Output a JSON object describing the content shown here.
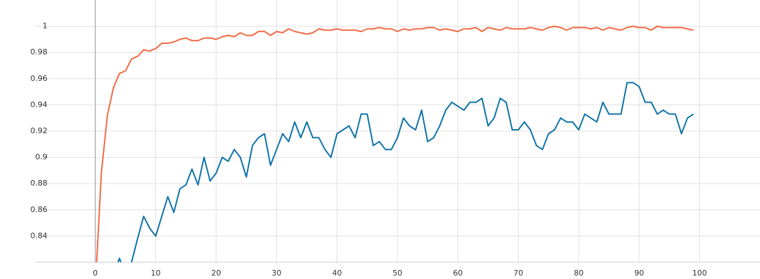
{
  "chart_data": {
    "type": "line",
    "x": [
      0,
      1,
      2,
      3,
      4,
      5,
      6,
      7,
      8,
      9,
      10,
      11,
      12,
      13,
      14,
      15,
      16,
      17,
      18,
      19,
      20,
      21,
      22,
      23,
      24,
      25,
      26,
      27,
      28,
      29,
      30,
      31,
      32,
      33,
      34,
      35,
      36,
      37,
      38,
      39,
      40,
      41,
      42,
      43,
      44,
      45,
      46,
      47,
      48,
      49,
      50,
      51,
      52,
      53,
      54,
      55,
      56,
      57,
      58,
      59,
      60,
      61,
      62,
      63,
      64,
      65,
      66,
      67,
      68,
      69,
      70,
      71,
      72,
      73,
      74,
      75,
      76,
      77,
      78,
      79,
      80,
      81,
      82,
      83,
      84,
      85,
      86,
      87,
      88,
      89,
      90,
      91,
      92,
      93,
      94,
      95,
      96,
      97,
      98,
      99
    ],
    "series": [
      {
        "color": "#f26b43",
        "values": [
          0.8,
          0.888,
          0.932,
          0.953,
          0.964,
          0.966,
          0.975,
          0.977,
          0.982,
          0.981,
          0.983,
          0.987,
          0.987,
          0.988,
          0.99,
          0.991,
          0.989,
          0.989,
          0.991,
          0.991,
          0.99,
          0.992,
          0.993,
          0.992,
          0.995,
          0.993,
          0.993,
          0.996,
          0.996,
          0.993,
          0.996,
          0.995,
          0.998,
          0.996,
          0.995,
          0.994,
          0.995,
          0.998,
          0.997,
          0.997,
          0.998,
          0.997,
          0.997,
          0.997,
          0.996,
          0.998,
          0.998,
          0.999,
          0.998,
          0.998,
          0.996,
          0.998,
          0.997,
          0.998,
          0.998,
          0.999,
          0.999,
          0.997,
          0.998,
          0.997,
          0.996,
          0.998,
          0.998,
          0.999,
          0.996,
          0.999,
          0.998,
          0.997,
          0.999,
          0.998,
          0.998,
          0.998,
          0.999,
          0.998,
          0.997,
          0.999,
          1.0,
          0.999,
          0.997,
          0.999,
          0.999,
          0.999,
          0.998,
          0.999,
          0.997,
          0.999,
          0.998,
          0.997,
          0.999,
          1.0,
          0.999,
          0.999,
          0.997,
          1.0,
          0.999,
          0.999,
          0.999,
          0.999,
          0.998,
          0.997
        ]
      },
      {
        "color": "#0f73a8",
        "values": [
          0.8,
          0.81,
          0.8,
          0.81,
          0.823,
          0.81,
          0.82,
          0.838,
          0.855,
          0.846,
          0.84,
          0.855,
          0.87,
          0.858,
          0.876,
          0.879,
          0.891,
          0.879,
          0.9,
          0.882,
          0.888,
          0.9,
          0.897,
          0.906,
          0.9,
          0.885,
          0.909,
          0.915,
          0.918,
          0.894,
          0.906,
          0.918,
          0.912,
          0.927,
          0.915,
          0.927,
          0.915,
          0.915,
          0.906,
          0.9,
          0.918,
          0.921,
          0.924,
          0.915,
          0.933,
          0.933,
          0.909,
          0.912,
          0.906,
          0.906,
          0.915,
          0.93,
          0.924,
          0.921,
          0.936,
          0.912,
          0.915,
          0.924,
          0.936,
          0.942,
          0.939,
          0.936,
          0.942,
          0.942,
          0.945,
          0.924,
          0.93,
          0.945,
          0.942,
          0.921,
          0.921,
          0.927,
          0.921,
          0.909,
          0.906,
          0.918,
          0.921,
          0.93,
          0.927,
          0.927,
          0.921,
          0.933,
          0.93,
          0.927,
          0.942,
          0.933,
          0.933,
          0.933,
          0.957,
          0.957,
          0.954,
          0.942,
          0.942,
          0.933,
          0.936,
          0.933,
          0.933,
          0.918,
          0.93,
          0.933
        ]
      }
    ],
    "xlim": [
      -10,
      110
    ],
    "xticks": [
      0,
      10,
      20,
      30,
      40,
      50,
      60,
      70,
      80,
      90,
      100
    ],
    "ylim": [
      0.82,
      1.02
    ],
    "yticks": [
      0.84,
      0.86,
      0.88,
      0.9,
      0.92,
      0.94,
      0.96,
      0.98,
      1
    ],
    "grid": true
  }
}
